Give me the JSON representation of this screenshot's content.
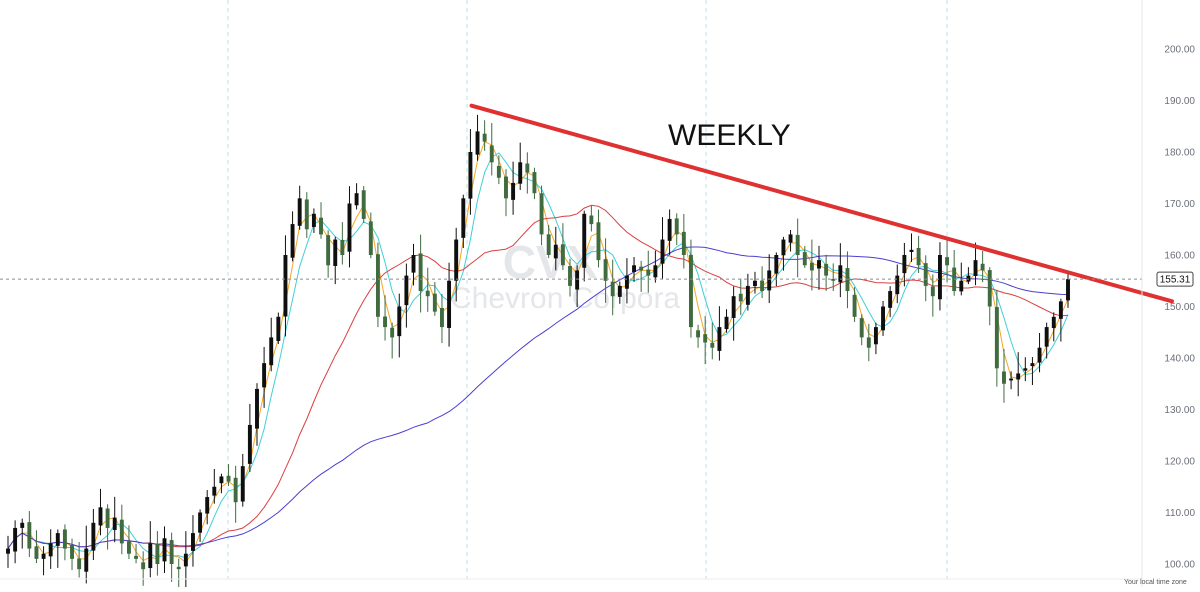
{
  "chart_data": {
    "type": "candlestick",
    "annotation": "WEEKLY",
    "watermark": {
      "symbol": "CVX",
      "name": "Chevron Corpora"
    },
    "last_price_label": "155.31",
    "ylim": [
      98,
      210
    ],
    "y_ticks": [
      "200.00",
      "190.00",
      "180.00",
      "170.00",
      "160.00",
      "150.00",
      "140.00",
      "130.00",
      "120.00",
      "110.00",
      "100.00"
    ],
    "footer_text": "Your local time zone",
    "colors": {
      "up_candle": "#0f0f0f",
      "down_candle": "#3f6b3f",
      "trendline": "#e03131",
      "ma_fast_orange": "#f5a623",
      "ma_fast_cyan": "#3fd0d6",
      "ma_mid_red": "#d94040",
      "ma_slow_purple": "#4b3fd1"
    },
    "trendline": {
      "start": [
        0,
        189
      ],
      "end": [
        157,
        151
      ]
    },
    "closes": [
      103,
      107,
      108,
      103,
      101,
      102,
      104,
      106,
      103,
      101,
      99,
      103,
      108,
      111,
      107,
      109,
      104,
      102,
      101,
      99,
      104,
      100,
      105,
      100,
      99,
      102,
      106,
      110,
      113,
      115,
      117,
      116,
      112,
      119,
      127,
      134,
      139,
      144,
      148,
      160,
      166,
      171,
      165,
      168,
      164,
      158,
      163,
      160,
      170,
      172,
      167,
      160,
      148,
      146,
      144,
      150,
      156,
      160,
      153,
      152,
      149,
      146,
      155,
      163,
      171,
      180,
      184,
      182,
      178,
      175,
      171,
      174,
      178,
      176,
      172,
      164,
      160,
      162,
      158,
      154,
      157,
      168,
      166,
      159,
      155,
      152,
      154,
      156,
      158,
      157,
      156,
      158,
      163,
      167,
      164,
      160,
      146,
      144,
      143,
      142,
      146,
      148,
      152,
      151,
      154,
      155,
      153,
      157,
      160,
      163,
      164,
      160,
      158,
      157,
      159,
      156,
      155,
      158,
      153,
      148,
      144,
      142,
      146,
      150,
      153,
      156,
      160,
      161,
      158,
      154,
      152,
      160,
      158,
      153,
      155,
      156,
      159,
      157,
      150,
      138,
      135,
      136,
      137,
      138,
      139,
      142,
      146,
      148,
      151,
      155.31
    ]
  }
}
